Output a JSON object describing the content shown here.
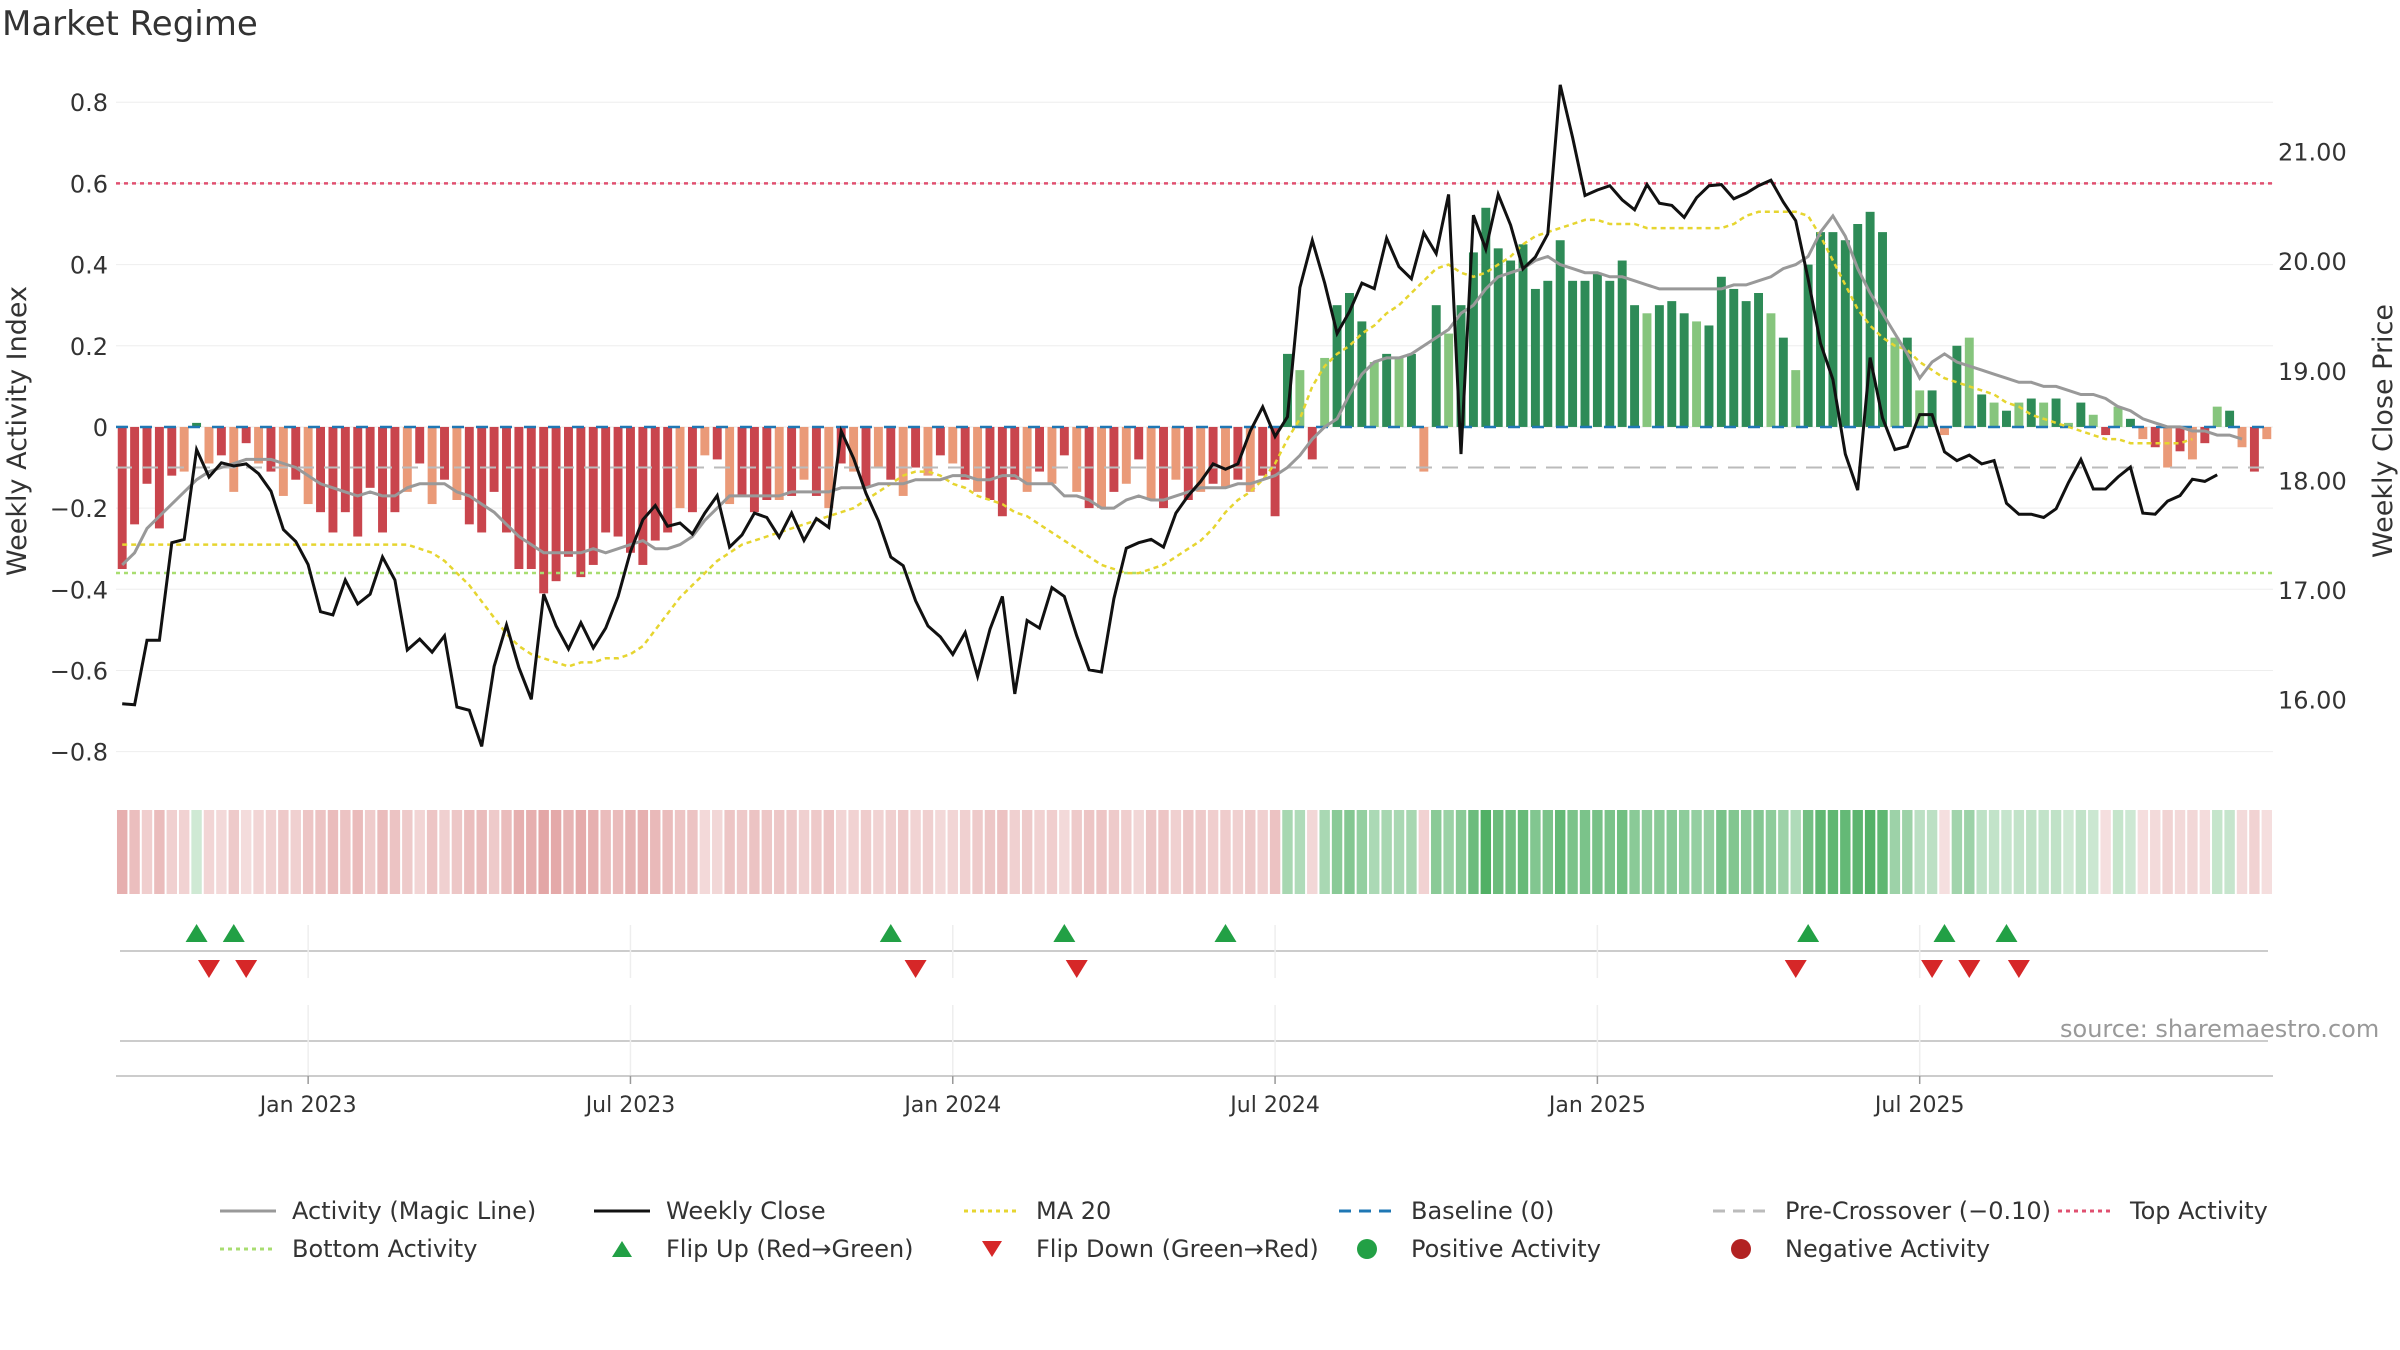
{
  "title": "Market Regime",
  "source": "source: sharemaestro.com",
  "colors": {
    "red_dark": "#c9454d",
    "red_light": "#ea9a78",
    "green_dark": "#2e8b57",
    "green_light": "#86c57d",
    "magic": "#999999",
    "close": "#111111",
    "ma20": "#e6d530",
    "baseline": "#1f77b4",
    "precross": "#bbbbbb",
    "top": "#e05070",
    "bottom": "#a8dd70",
    "flip_up": "#22a045",
    "flip_down": "#d62728"
  },
  "legend": [
    {
      "label": "Activity (Magic Line)",
      "kind": "line",
      "color": "#999999",
      "dash": ""
    },
    {
      "label": "Weekly Close",
      "kind": "line",
      "color": "#111111",
      "dash": ""
    },
    {
      "label": "MA 20",
      "kind": "line",
      "color": "#e6d530",
      "dash": "4,4"
    },
    {
      "label": "Baseline (0)",
      "kind": "line",
      "color": "#1f77b4",
      "dash": "12,8"
    },
    {
      "label": "Pre-Crossover (−0.10)",
      "kind": "line",
      "color": "#bbbbbb",
      "dash": "12,8"
    },
    {
      "label": "Top Activity",
      "kind": "line",
      "color": "#e05070",
      "dash": "4,4"
    },
    {
      "label": "Bottom Activity",
      "kind": "line",
      "color": "#a8dd70",
      "dash": "4,4"
    },
    {
      "label": "Flip Up (Red→Green)",
      "kind": "tri-up",
      "color": "#22a045",
      "dash": ""
    },
    {
      "label": "Flip Down (Green→Red)",
      "kind": "tri-down",
      "color": "#d62728",
      "dash": ""
    },
    {
      "label": "Positive Activity",
      "kind": "dot",
      "color": "#22a045",
      "dash": ""
    },
    {
      "label": "Negative Activity",
      "kind": "dot",
      "color": "#b22222",
      "dash": ""
    }
  ],
  "chart_data": {
    "type": "bar",
    "ylabel_left": "Weekly Activity Index",
    "ylabel_right": "Weekly Close Price",
    "ylim_left": [
      -0.86,
      0.84
    ],
    "ylim_right": [
      15.3,
      21.6
    ],
    "yticks_left": [
      "0.8",
      "0.6",
      "0.4",
      "0.2",
      "0",
      "−0.2",
      "−0.4",
      "−0.6",
      "−0.8"
    ],
    "yticks_left_values": [
      0.8,
      0.6,
      0.4,
      0.2,
      0,
      -0.2,
      -0.4,
      -0.6,
      -0.8
    ],
    "yticks_right": [
      "21.00",
      "20.00",
      "19.00",
      "18.00",
      "17.00",
      "16.00"
    ],
    "yticks_right_values": [
      21,
      20,
      19,
      18,
      17,
      16
    ],
    "xticks": [
      "Jan 2023",
      "Jul 2023",
      "Jan 2024",
      "Jul 2024",
      "Jan 2025",
      "Jul 2025"
    ],
    "xtick_week_index": [
      15,
      41,
      67,
      93,
      119,
      145
    ],
    "reference_lines": {
      "top": 0.6,
      "bottom": -0.36,
      "pre_crossover": -0.1,
      "baseline": 0
    },
    "activity": [
      -0.35,
      -0.24,
      -0.14,
      -0.25,
      -0.12,
      -0.11,
      0.01,
      -0.09,
      -0.07,
      -0.16,
      -0.04,
      -0.09,
      -0.11,
      -0.17,
      -0.13,
      -0.19,
      -0.21,
      -0.26,
      -0.21,
      -0.27,
      -0.15,
      -0.26,
      -0.21,
      -0.16,
      -0.09,
      -0.19,
      -0.13,
      -0.18,
      -0.24,
      -0.26,
      -0.16,
      -0.26,
      -0.35,
      -0.35,
      -0.41,
      -0.38,
      -0.32,
      -0.37,
      -0.34,
      -0.26,
      -0.27,
      -0.31,
      -0.34,
      -0.28,
      -0.26,
      -0.2,
      -0.21,
      -0.07,
      -0.08,
      -0.19,
      -0.17,
      -0.21,
      -0.18,
      -0.18,
      -0.17,
      -0.13,
      -0.17,
      -0.2,
      -0.09,
      -0.11,
      -0.15,
      -0.1,
      -0.13,
      -0.17,
      -0.1,
      -0.12,
      -0.07,
      -0.09,
      -0.13,
      -0.16,
      -0.18,
      -0.22,
      -0.13,
      -0.16,
      -0.11,
      -0.14,
      -0.07,
      -0.16,
      -0.2,
      -0.2,
      -0.16,
      -0.14,
      -0.08,
      -0.18,
      -0.2,
      -0.13,
      -0.18,
      -0.16,
      -0.14,
      -0.15,
      -0.13,
      -0.16,
      -0.12,
      -0.22,
      0.18,
      0.14,
      -0.08,
      0.17,
      0.3,
      0.33,
      0.26,
      0.16,
      0.18,
      0.17,
      0.18,
      -0.11,
      0.3,
      0.23,
      0.3,
      0.43,
      0.54,
      0.44,
      0.41,
      0.45,
      0.34,
      0.36,
      0.46,
      0.36,
      0.36,
      0.38,
      0.36,
      0.41,
      0.3,
      0.28,
      0.3,
      0.31,
      0.28,
      0.26,
      0.25,
      0.37,
      0.34,
      0.31,
      0.33,
      0.28,
      0.22,
      0.14,
      0.4,
      0.48,
      0.48,
      0.46,
      0.5,
      0.53,
      0.48,
      0.22,
      0.22,
      0.09,
      0.09,
      -0.02,
      0.2,
      0.22,
      0.08,
      0.06,
      0.04,
      0.06,
      0.07,
      0.06,
      0.07,
      0.01,
      0.06,
      0.03,
      -0.02,
      0.05,
      0.02,
      -0.03,
      -0.05,
      -0.1,
      -0.06,
      -0.08,
      -0.04,
      0.05,
      0.04,
      -0.05,
      -0.11,
      -0.03
    ],
    "close": [
      15.96,
      15.95,
      16.54,
      16.54,
      17.43,
      17.46,
      18.28,
      18.03,
      18.16,
      18.13,
      18.15,
      18.06,
      17.9,
      17.55,
      17.44,
      17.23,
      16.8,
      16.77,
      17.09,
      16.87,
      16.96,
      17.3,
      17.09,
      16.45,
      16.55,
      16.43,
      16.58,
      15.93,
      15.9,
      15.57,
      16.3,
      16.68,
      16.29,
      16.0,
      16.96,
      16.67,
      16.46,
      16.7,
      16.47,
      16.65,
      16.94,
      17.35,
      17.64,
      17.77,
      17.58,
      17.61,
      17.51,
      17.7,
      17.86,
      17.39,
      17.5,
      17.7,
      17.66,
      17.48,
      17.7,
      17.45,
      17.65,
      17.57,
      18.45,
      18.2,
      17.88,
      17.63,
      17.3,
      17.22,
      16.9,
      16.67,
      16.57,
      16.41,
      16.61,
      16.21,
      16.64,
      16.94,
      16.05,
      16.72,
      16.65,
      17.02,
      16.94,
      16.58,
      16.27,
      16.25,
      16.92,
      17.38,
      17.43,
      17.46,
      17.39,
      17.7,
      17.86,
      17.99,
      18.15,
      18.1,
      18.15,
      18.45,
      18.67,
      18.4,
      18.58,
      19.76,
      20.19,
      19.8,
      19.34,
      19.54,
      19.8,
      19.75,
      20.21,
      19.95,
      19.84,
      20.26,
      20.07,
      20.61,
      18.24,
      20.42,
      20.11,
      20.61,
      20.33,
      19.93,
      20.04,
      20.25,
      21.61,
      21.13,
      20.6,
      20.65,
      20.69,
      20.56,
      20.47,
      20.7,
      20.53,
      20.51,
      20.4,
      20.58,
      20.69,
      20.7,
      20.57,
      20.62,
      20.69,
      20.74,
      20.54,
      20.37,
      19.84,
      19.25,
      18.92,
      18.24,
      17.91,
      19.12,
      18.57,
      18.28,
      18.31,
      18.6,
      18.6,
      18.26,
      18.18,
      18.23,
      18.15,
      18.18,
      17.79,
      17.69,
      17.69,
      17.66,
      17.74,
      17.98,
      18.19,
      17.92,
      17.92,
      18.03,
      18.12,
      17.7,
      17.69,
      17.81,
      17.86,
      18.01,
      17.99,
      18.05
    ],
    "magic": [
      -0.34,
      -0.31,
      -0.25,
      -0.22,
      -0.19,
      -0.16,
      -0.13,
      -0.11,
      -0.1,
      -0.09,
      -0.08,
      -0.08,
      -0.08,
      -0.09,
      -0.1,
      -0.12,
      -0.14,
      -0.15,
      -0.16,
      -0.17,
      -0.16,
      -0.17,
      -0.17,
      -0.15,
      -0.14,
      -0.14,
      -0.14,
      -0.16,
      -0.17,
      -0.19,
      -0.21,
      -0.24,
      -0.27,
      -0.29,
      -0.31,
      -0.31,
      -0.31,
      -0.31,
      -0.3,
      -0.31,
      -0.3,
      -0.29,
      -0.28,
      -0.3,
      -0.3,
      -0.29,
      -0.27,
      -0.23,
      -0.2,
      -0.17,
      -0.17,
      -0.17,
      -0.17,
      -0.17,
      -0.16,
      -0.16,
      -0.16,
      -0.16,
      -0.15,
      -0.15,
      -0.15,
      -0.14,
      -0.14,
      -0.14,
      -0.13,
      -0.13,
      -0.13,
      -0.12,
      -0.12,
      -0.13,
      -0.13,
      -0.12,
      -0.12,
      -0.14,
      -0.14,
      -0.14,
      -0.17,
      -0.17,
      -0.18,
      -0.2,
      -0.2,
      -0.18,
      -0.17,
      -0.18,
      -0.18,
      -0.17,
      -0.16,
      -0.15,
      -0.15,
      -0.15,
      -0.14,
      -0.14,
      -0.13,
      -0.12,
      -0.1,
      -0.07,
      -0.03,
      0.0,
      0.02,
      0.08,
      0.13,
      0.16,
      0.17,
      0.17,
      0.18,
      0.2,
      0.22,
      0.24,
      0.28,
      0.3,
      0.34,
      0.37,
      0.38,
      0.39,
      0.41,
      0.42,
      0.4,
      0.39,
      0.38,
      0.38,
      0.37,
      0.37,
      0.36,
      0.35,
      0.34,
      0.34,
      0.34,
      0.34,
      0.34,
      0.34,
      0.35,
      0.35,
      0.36,
      0.37,
      0.39,
      0.4,
      0.42,
      0.48,
      0.52,
      0.47,
      0.39,
      0.33,
      0.28,
      0.23,
      0.18,
      0.12,
      0.16,
      0.18,
      0.16,
      0.15,
      0.14,
      0.13,
      0.12,
      0.11,
      0.11,
      0.1,
      0.1,
      0.09,
      0.08,
      0.08,
      0.07,
      0.05,
      0.04,
      0.02,
      0.01,
      0.0,
      0.0,
      -0.01,
      -0.01,
      -0.02,
      -0.02,
      -0.03
    ],
    "ma20": [
      -0.29,
      -0.29,
      -0.29,
      -0.29,
      -0.29,
      -0.29,
      -0.29,
      -0.29,
      -0.29,
      -0.29,
      -0.29,
      -0.29,
      -0.29,
      -0.29,
      -0.29,
      -0.29,
      -0.29,
      -0.29,
      -0.29,
      -0.29,
      -0.29,
      -0.29,
      -0.29,
      -0.29,
      -0.3,
      -0.31,
      -0.33,
      -0.36,
      -0.39,
      -0.43,
      -0.47,
      -0.51,
      -0.54,
      -0.56,
      -0.57,
      -0.58,
      -0.59,
      -0.58,
      -0.58,
      -0.57,
      -0.57,
      -0.56,
      -0.54,
      -0.5,
      -0.46,
      -0.42,
      -0.39,
      -0.36,
      -0.33,
      -0.31,
      -0.29,
      -0.28,
      -0.27,
      -0.26,
      -0.25,
      -0.24,
      -0.23,
      -0.22,
      -0.21,
      -0.2,
      -0.18,
      -0.16,
      -0.14,
      -0.12,
      -0.11,
      -0.11,
      -0.12,
      -0.14,
      -0.15,
      -0.17,
      -0.18,
      -0.19,
      -0.21,
      -0.22,
      -0.24,
      -0.26,
      -0.28,
      -0.3,
      -0.32,
      -0.34,
      -0.35,
      -0.36,
      -0.36,
      -0.35,
      -0.34,
      -0.32,
      -0.3,
      -0.28,
      -0.25,
      -0.21,
      -0.18,
      -0.16,
      -0.13,
      -0.09,
      -0.03,
      0.02,
      0.1,
      0.15,
      0.18,
      0.2,
      0.23,
      0.25,
      0.28,
      0.3,
      0.33,
      0.36,
      0.39,
      0.4,
      0.38,
      0.37,
      0.38,
      0.4,
      0.42,
      0.45,
      0.47,
      0.48,
      0.49,
      0.5,
      0.51,
      0.51,
      0.5,
      0.5,
      0.5,
      0.49,
      0.49,
      0.49,
      0.49,
      0.49,
      0.49,
      0.49,
      0.5,
      0.52,
      0.53,
      0.53,
      0.53,
      0.53,
      0.52,
      0.47,
      0.41,
      0.35,
      0.29,
      0.25,
      0.22,
      0.2,
      0.19,
      0.16,
      0.14,
      0.12,
      0.11,
      0.1,
      0.09,
      0.08,
      0.06,
      0.05,
      0.03,
      0.02,
      0.01,
      0.0,
      -0.01,
      -0.02,
      -0.03,
      -0.03,
      -0.04,
      -0.04,
      -0.04,
      -0.04,
      -0.04,
      -0.03
    ],
    "flip_up_weeks": [
      6,
      9,
      62,
      76,
      89,
      136,
      147,
      152
    ],
    "flip_down_weeks": [
      7,
      10,
      64,
      77,
      135,
      146,
      149,
      153
    ]
  }
}
